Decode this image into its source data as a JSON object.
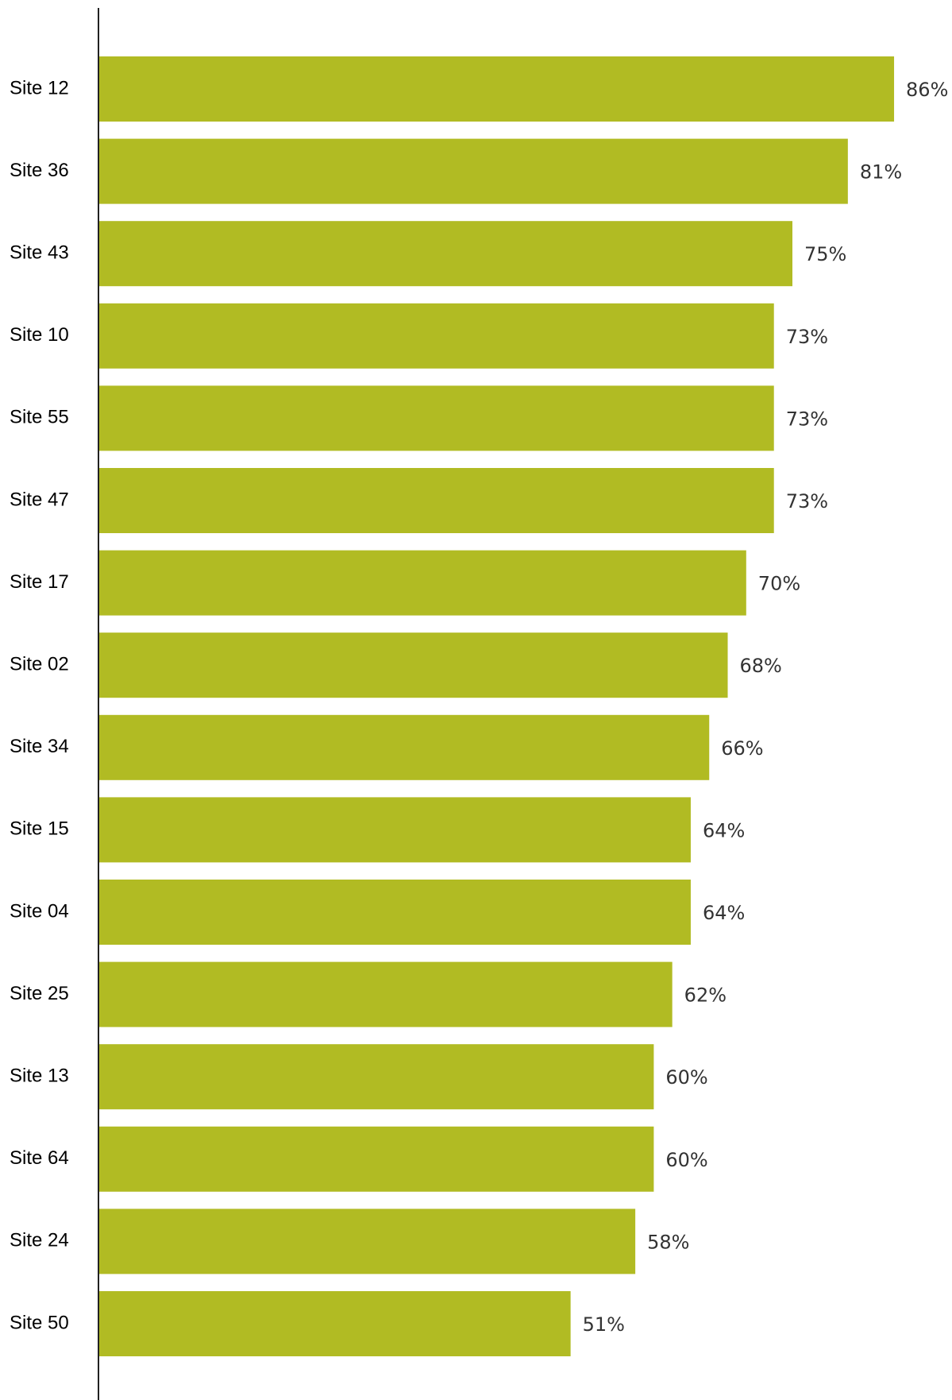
{
  "chart_data": {
    "type": "bar",
    "orientation": "horizontal",
    "categories": [
      "Site 12",
      "Site 36",
      "Site 43",
      "Site 10",
      "Site 55",
      "Site 47",
      "Site 17",
      "Site 02",
      "Site 34",
      "Site 15",
      "Site 04",
      "Site 25",
      "Site 13",
      "Site 64",
      "Site 24",
      "Site 50"
    ],
    "values": [
      86,
      81,
      75,
      73,
      73,
      73,
      70,
      68,
      66,
      64,
      64,
      62,
      60,
      60,
      58,
      51
    ],
    "value_labels": [
      "86%",
      "81%",
      "75%",
      "73%",
      "73%",
      "73%",
      "70%",
      "68%",
      "66%",
      "64%",
      "64%",
      "62%",
      "60%",
      "60%",
      "58%",
      "51%"
    ],
    "value_unit": "%",
    "title": "",
    "xlabel": "",
    "ylabel": "",
    "xlim": [
      0,
      100
    ],
    "grid": false,
    "legend": "none",
    "bar_color": "#b1bb23"
  }
}
